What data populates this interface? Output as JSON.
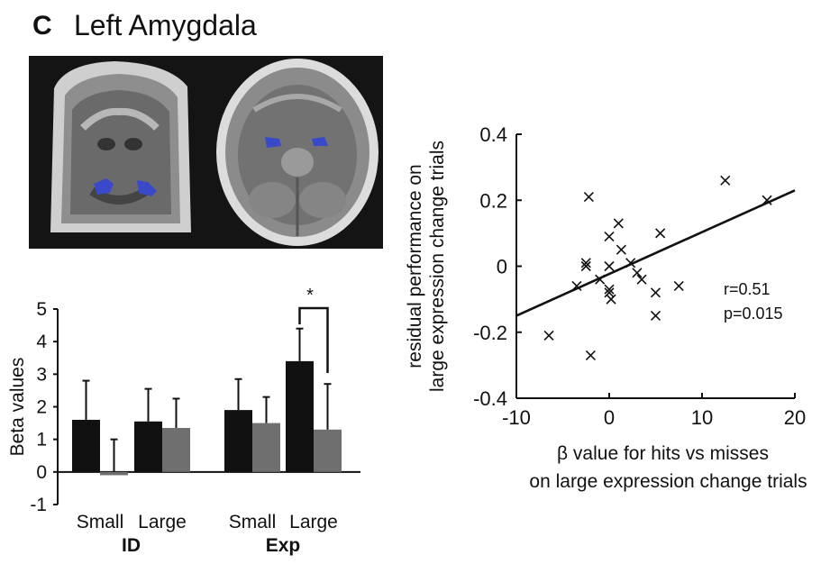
{
  "header": {
    "panel_letter": "C",
    "title": "Left Amygdala"
  },
  "colors": {
    "black_bar": "#111111",
    "grey_bar": "#6f6f6f",
    "roi": "#3a49c9",
    "line": "#111111"
  },
  "bar_chart": {
    "type": "bar",
    "ylabel": "Beta values",
    "ylim": [
      -1,
      5
    ],
    "yticks": [
      "5",
      "4",
      "3",
      "2",
      "1",
      "0",
      "-1"
    ],
    "tick_values": [
      5,
      4,
      3,
      2,
      1,
      0,
      -1
    ],
    "xtick_labels": [
      "Small",
      "Large",
      "Small",
      "Large"
    ],
    "group_labels": [
      "ID",
      "Exp"
    ],
    "significance_marker": "*",
    "series": [
      {
        "category": "ID Small",
        "black": 1.6,
        "black_err": 1.2,
        "grey": -0.1,
        "grey_err": 1.0
      },
      {
        "category": "ID Large",
        "black": 1.55,
        "black_err": 1.0,
        "grey": 1.35,
        "grey_err": 0.9
      },
      {
        "category": "Exp Small",
        "black": 1.9,
        "black_err": 0.95,
        "grey": 1.5,
        "grey_err": 0.8
      },
      {
        "category": "Exp Large",
        "black": 3.4,
        "black_err": 1.0,
        "grey": 1.3,
        "grey_err": 1.4
      }
    ]
  },
  "chart_data": {
    "type": "scatter",
    "xlabel_lines": [
      "β value for hits vs misses",
      "on large expression change trials"
    ],
    "ylabel_lines": [
      "residual performance on",
      "large expression change trials"
    ],
    "xlim": [
      -10,
      20
    ],
    "ylim": [
      -0.4,
      0.4
    ],
    "xticks": [
      "-10",
      "0",
      "10",
      "20"
    ],
    "xtick_values": [
      -10,
      0,
      10,
      20
    ],
    "yticks": [
      "0.4",
      "0.2",
      "0",
      "-0.2",
      "-0.4"
    ],
    "ytick_values": [
      0.4,
      0.2,
      0,
      -0.2,
      -0.4
    ],
    "marker": "×",
    "points": [
      [
        -6.5,
        -0.21
      ],
      [
        -2.5,
        0.0
      ],
      [
        -2.5,
        0.01
      ],
      [
        -2.2,
        0.21
      ],
      [
        -2.0,
        -0.27
      ],
      [
        -3.5,
        -0.06
      ],
      [
        -1.0,
        -0.04
      ],
      [
        0.0,
        0.09
      ],
      [
        0.0,
        0.0
      ],
      [
        0.0,
        -0.07
      ],
      [
        0.2,
        -0.1
      ],
      [
        0.0,
        -0.08
      ],
      [
        1.0,
        0.13
      ],
      [
        1.3,
        0.05
      ],
      [
        2.3,
        0.01
      ],
      [
        3.0,
        -0.02
      ],
      [
        3.5,
        -0.04
      ],
      [
        5.0,
        -0.08
      ],
      [
        5.0,
        -0.15
      ],
      [
        5.5,
        0.1
      ],
      [
        7.5,
        -0.06
      ],
      [
        12.5,
        0.26
      ],
      [
        17.0,
        0.2
      ]
    ],
    "fit_line": {
      "x": [
        -10,
        20
      ],
      "y": [
        -0.15,
        0.23
      ]
    },
    "annotations": [
      "r=0.51",
      "p=0.015"
    ]
  }
}
